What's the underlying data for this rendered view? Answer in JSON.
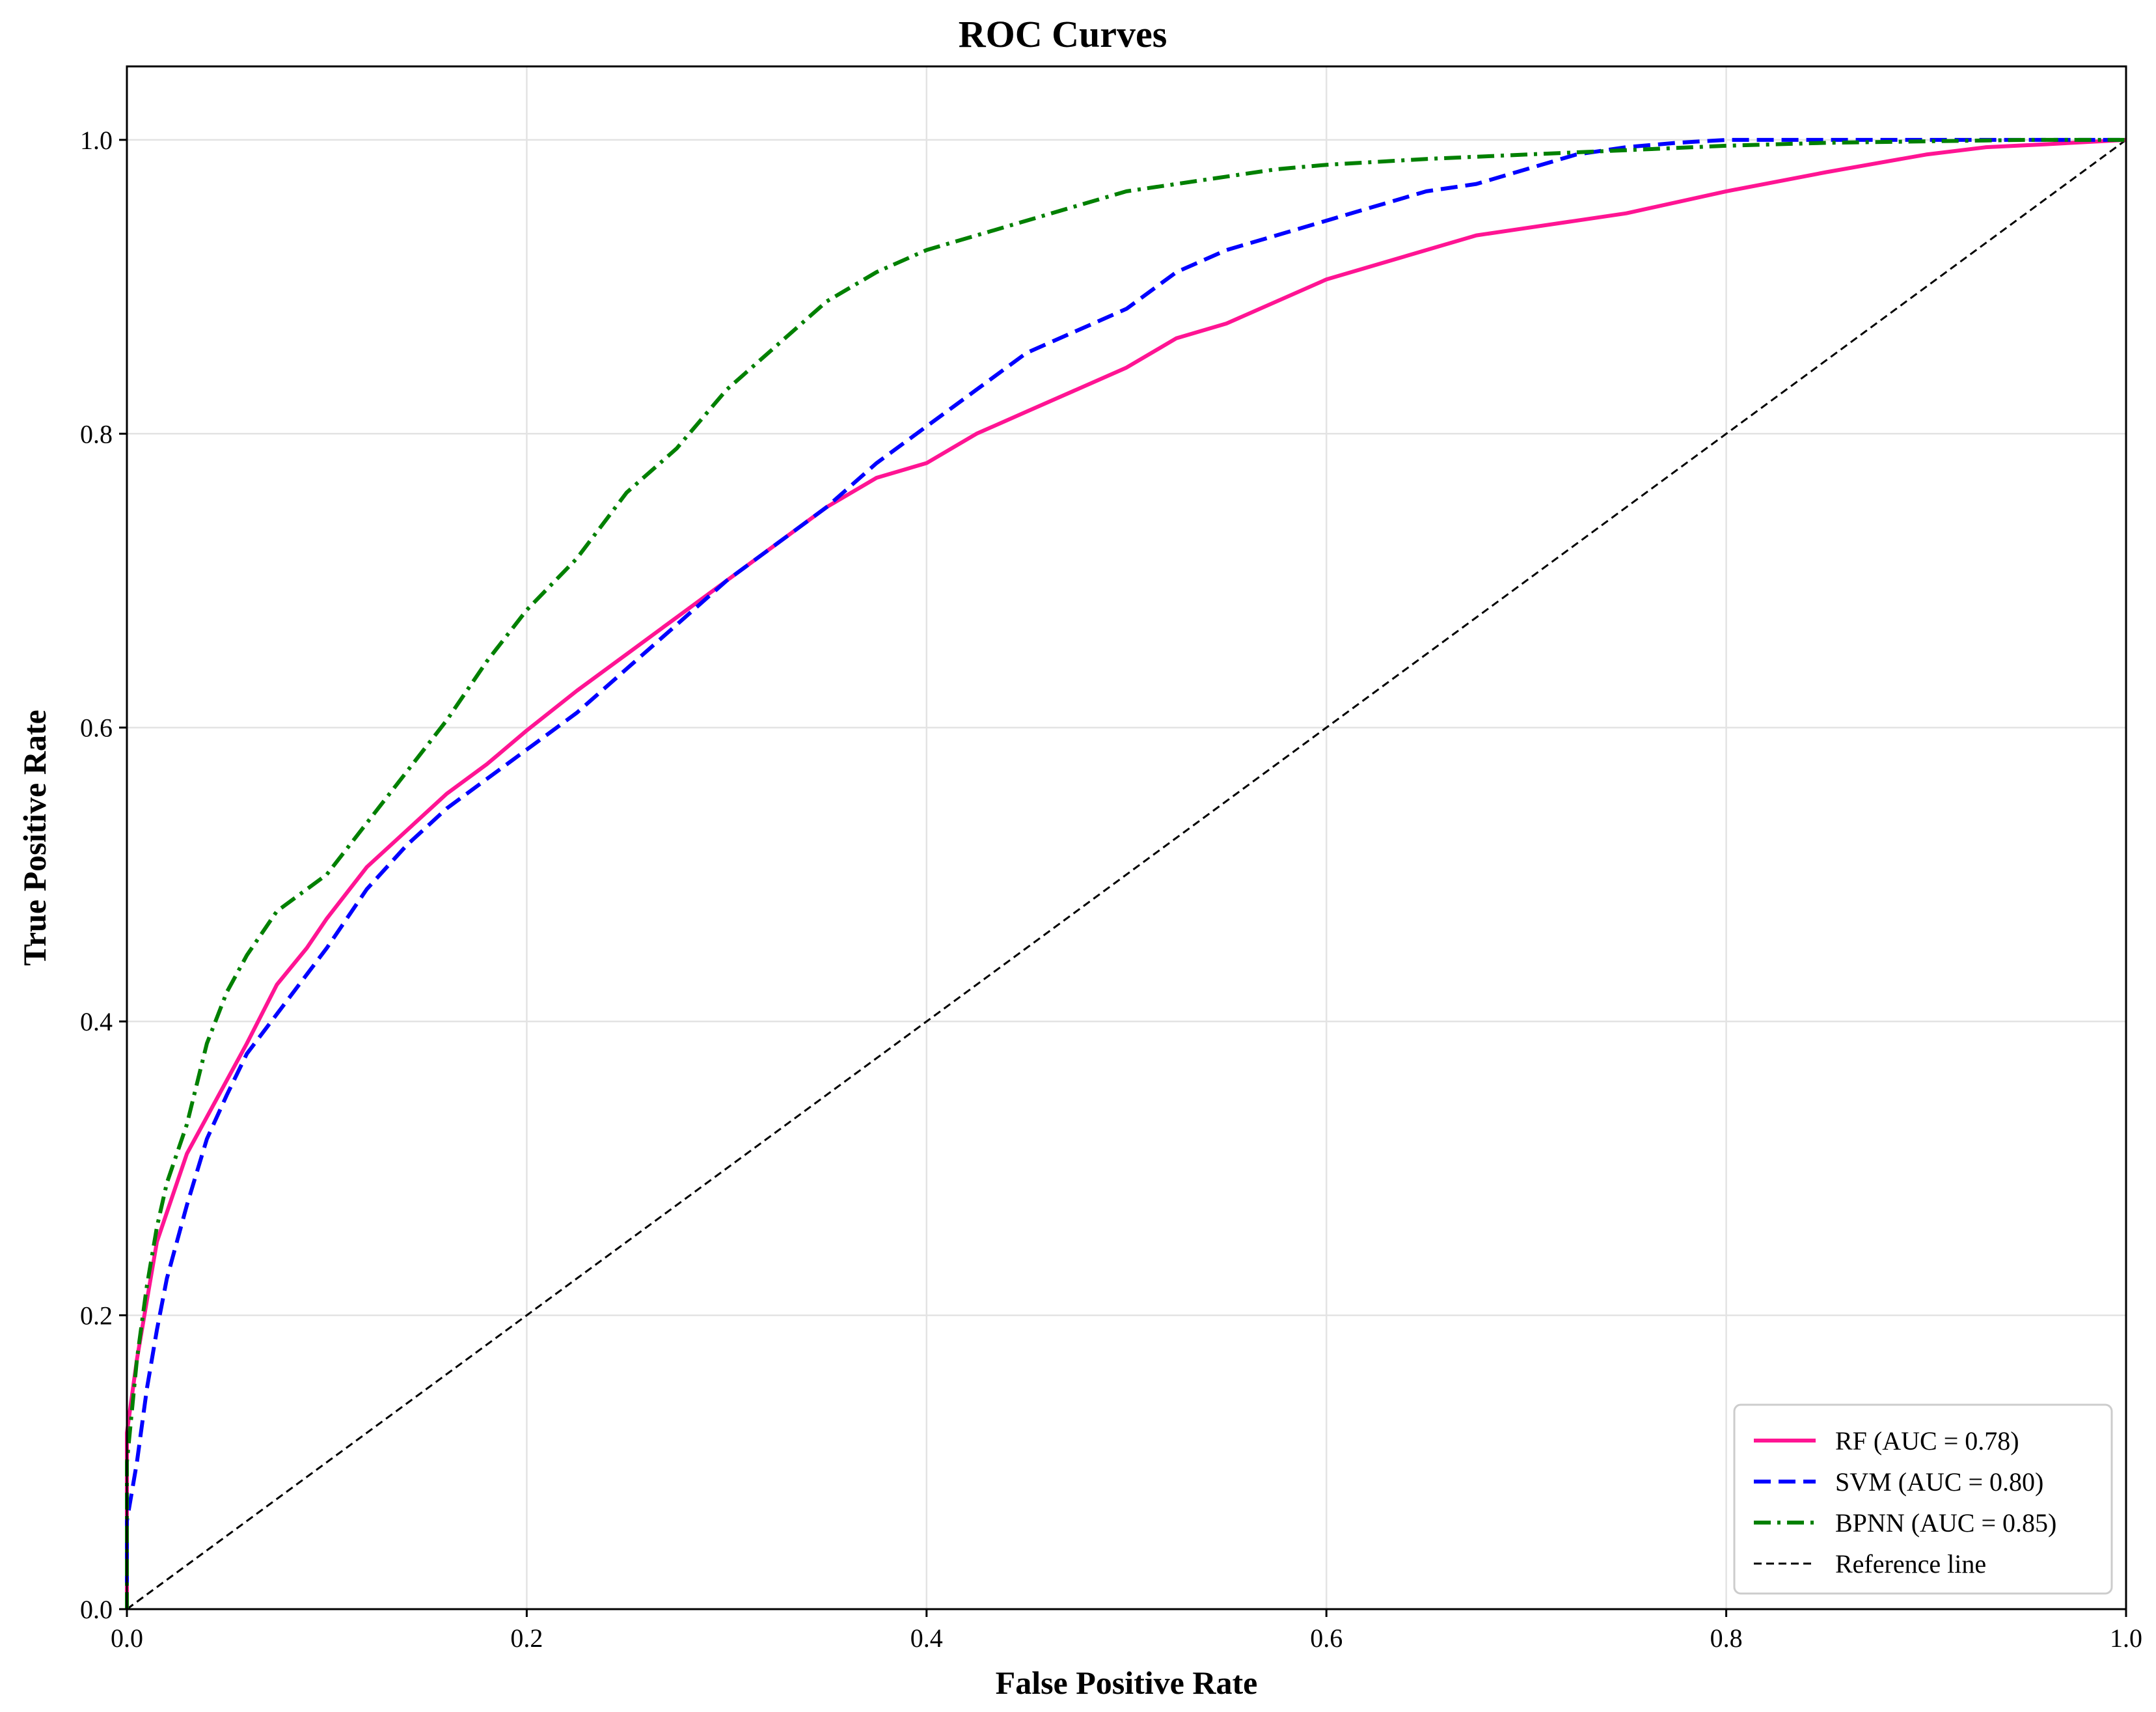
{
  "chart_data": {
    "type": "line",
    "title": "ROC Curves",
    "xlabel": "False Positive Rate",
    "ylabel": "True Positive Rate",
    "xlim": [
      0.0,
      1.0
    ],
    "ylim": [
      0.0,
      1.05
    ],
    "xticks": [
      "0.0",
      "0.2",
      "0.4",
      "0.6",
      "0.8",
      "1.0"
    ],
    "yticks": [
      "0.0",
      "0.2",
      "0.4",
      "0.6",
      "0.8",
      "1.0"
    ],
    "grid": true,
    "legend_position": "lower-right",
    "series": [
      {
        "name": "RF (AUC = 0.78)",
        "color": "#ff1493",
        "dash": "solid",
        "x": [
          0,
          0,
          0.005,
          0.01,
          0.015,
          0.02,
          0.03,
          0.04,
          0.05,
          0.06,
          0.075,
          0.09,
          0.1,
          0.12,
          0.14,
          0.16,
          0.18,
          0.2,
          0.225,
          0.25,
          0.275,
          0.3,
          0.325,
          0.35,
          0.375,
          0.4,
          0.425,
          0.45,
          0.475,
          0.5,
          0.525,
          0.55,
          0.6,
          0.65,
          0.675,
          0.7,
          0.75,
          0.8,
          0.85,
          0.9,
          0.93,
          0.96,
          1.0
        ],
        "y": [
          0,
          0.12,
          0.17,
          0.21,
          0.25,
          0.27,
          0.31,
          0.335,
          0.36,
          0.385,
          0.425,
          0.45,
          0.47,
          0.505,
          0.53,
          0.555,
          0.575,
          0.598,
          0.625,
          0.65,
          0.675,
          0.7,
          0.725,
          0.75,
          0.77,
          0.78,
          0.8,
          0.815,
          0.83,
          0.845,
          0.865,
          0.875,
          0.905,
          0.925,
          0.935,
          0.94,
          0.95,
          0.965,
          0.978,
          0.99,
          0.995,
          0.997,
          1.0
        ]
      },
      {
        "name": "SVM (AUC = 0.80)",
        "color": "#0000ff",
        "dash": "dashed",
        "x": [
          0,
          0,
          0.005,
          0.01,
          0.015,
          0.02,
          0.03,
          0.04,
          0.05,
          0.06,
          0.075,
          0.09,
          0.1,
          0.12,
          0.14,
          0.16,
          0.18,
          0.2,
          0.225,
          0.25,
          0.275,
          0.3,
          0.325,
          0.35,
          0.375,
          0.4,
          0.425,
          0.45,
          0.475,
          0.5,
          0.525,
          0.55,
          0.575,
          0.6,
          0.625,
          0.65,
          0.675,
          0.7,
          0.725,
          0.75,
          0.775,
          0.8,
          0.85,
          0.9,
          0.95,
          1.0
        ],
        "y": [
          0,
          0.06,
          0.1,
          0.15,
          0.19,
          0.225,
          0.275,
          0.32,
          0.35,
          0.378,
          0.405,
          0.432,
          0.45,
          0.49,
          0.52,
          0.545,
          0.565,
          0.585,
          0.61,
          0.64,
          0.67,
          0.7,
          0.725,
          0.75,
          0.78,
          0.805,
          0.83,
          0.855,
          0.87,
          0.885,
          0.91,
          0.925,
          0.935,
          0.945,
          0.955,
          0.965,
          0.97,
          0.98,
          0.99,
          0.995,
          0.998,
          1.0,
          1.0,
          1.0,
          1.0,
          1.0
        ]
      },
      {
        "name": "BPNN (AUC = 0.85)",
        "color": "#008000",
        "dash": "dashdot",
        "x": [
          0,
          0,
          0.005,
          0.01,
          0.015,
          0.02,
          0.03,
          0.04,
          0.05,
          0.06,
          0.075,
          0.09,
          0.1,
          0.12,
          0.14,
          0.16,
          0.18,
          0.2,
          0.225,
          0.25,
          0.275,
          0.3,
          0.325,
          0.35,
          0.375,
          0.4,
          0.425,
          0.45,
          0.475,
          0.5,
          0.525,
          0.55,
          0.575,
          0.6,
          0.65,
          0.7,
          0.75,
          0.8,
          0.85,
          0.9,
          0.95,
          1.0
        ],
        "y": [
          0,
          0.1,
          0.17,
          0.22,
          0.26,
          0.29,
          0.33,
          0.385,
          0.42,
          0.445,
          0.475,
          0.49,
          0.5,
          0.535,
          0.57,
          0.605,
          0.645,
          0.68,
          0.715,
          0.76,
          0.79,
          0.83,
          0.86,
          0.89,
          0.91,
          0.925,
          0.935,
          0.945,
          0.955,
          0.965,
          0.97,
          0.975,
          0.98,
          0.983,
          0.987,
          0.99,
          0.993,
          0.996,
          0.998,
          0.999,
          1.0,
          1.0
        ]
      },
      {
        "name": "Reference line",
        "color": "#000000",
        "dash": "fine-dash",
        "x": [
          0,
          1
        ],
        "y": [
          0,
          1
        ]
      }
    ]
  }
}
